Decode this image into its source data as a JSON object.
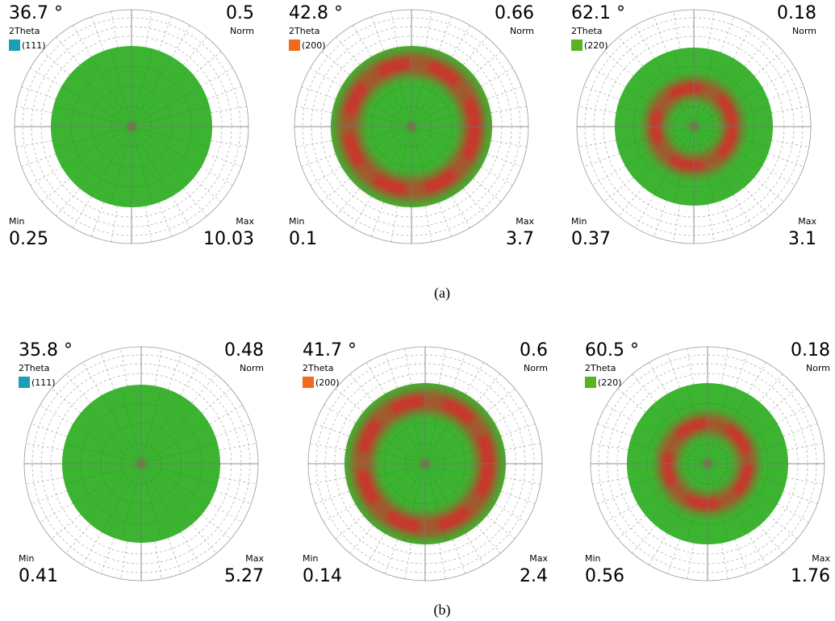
{
  "rows": [
    {
      "caption": "(a)",
      "panels": [
        {
          "two_theta": "36.7 °",
          "two_theta_label": "2Theta",
          "hkl": "(111)",
          "hkl_color": "#1a9fb5",
          "norm": "0.5",
          "norm_label": "Norm",
          "min_label": "Min",
          "min": "0.25",
          "max_label": "Max",
          "max": "10.03"
        },
        {
          "two_theta": "42.8 °",
          "two_theta_label": "2Theta",
          "hkl": "(200)",
          "hkl_color": "#f26b1d",
          "norm": "0.66",
          "norm_label": "Norm",
          "min_label": "Min",
          "min": "0.1",
          "max_label": "Max",
          "max": "3.7"
        },
        {
          "two_theta": "62.1 °",
          "two_theta_label": "2Theta",
          "hkl": "(220)",
          "hkl_color": "#5ab31e",
          "norm": "0.18",
          "norm_label": "Norm",
          "min_label": "Min",
          "min": "0.37",
          "max_label": "Max",
          "max": "3.1"
        }
      ]
    },
    {
      "caption": "(b)",
      "panels": [
        {
          "two_theta": "35.8 °",
          "two_theta_label": "2Theta",
          "hkl": "(111)",
          "hkl_color": "#1a9fb5",
          "norm": "0.48",
          "norm_label": "Norm",
          "min_label": "Min",
          "min": "0.41",
          "max_label": "Max",
          "max": "5.27"
        },
        {
          "two_theta": "41.7 °",
          "two_theta_label": "2Theta",
          "hkl": "(200)",
          "hkl_color": "#f26b1d",
          "norm": "0.6",
          "norm_label": "Norm",
          "min_label": "Min",
          "min": "0.14",
          "max_label": "Max",
          "max": "2.4"
        },
        {
          "two_theta": "60.5 °",
          "two_theta_label": "2Theta",
          "hkl": "(220)",
          "hkl_color": "#5ab31e",
          "norm": "0.18",
          "norm_label": "Norm",
          "min_label": "Min",
          "min": "0.56",
          "max_label": "Max",
          "max": "1.76"
        }
      ]
    }
  ]
}
